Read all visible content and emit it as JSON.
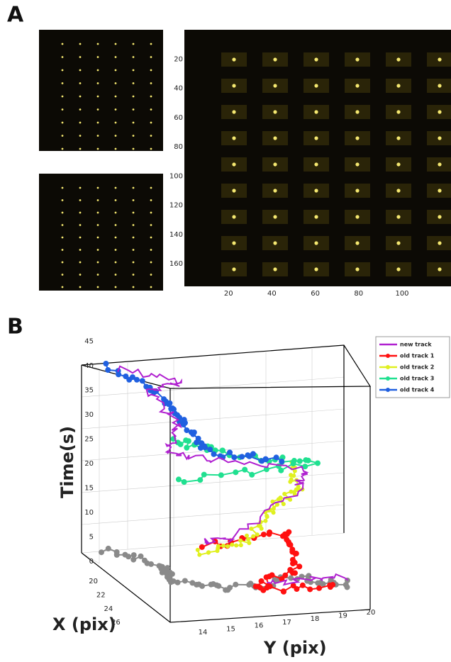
{
  "panel_a": {
    "label": "A",
    "y_ticks": [
      20,
      40,
      60,
      80,
      100,
      120,
      140,
      160
    ],
    "x_ticks": [
      20,
      40,
      60,
      80,
      100
    ]
  },
  "panel_b": {
    "label": "B",
    "legend": [
      {
        "name": "new track",
        "color": "#b020d0"
      },
      {
        "name": "old track 1",
        "color": "#ff1010"
      },
      {
        "name": "old track 2",
        "color": "#e0f020"
      },
      {
        "name": "old track 3",
        "color": "#20e090"
      },
      {
        "name": "old track 4",
        "color": "#2060e0"
      }
    ],
    "time_label": "Time(s)",
    "time_ticks": [
      0,
      5,
      10,
      15,
      20,
      25,
      30,
      35,
      40,
      45
    ],
    "x_label": "X (pix)",
    "x_ticks": [
      20,
      22,
      24,
      26
    ],
    "y_label": "Y (pix)",
    "y_ticks": [
      14,
      15,
      16,
      17,
      18,
      19,
      20
    ]
  }
}
